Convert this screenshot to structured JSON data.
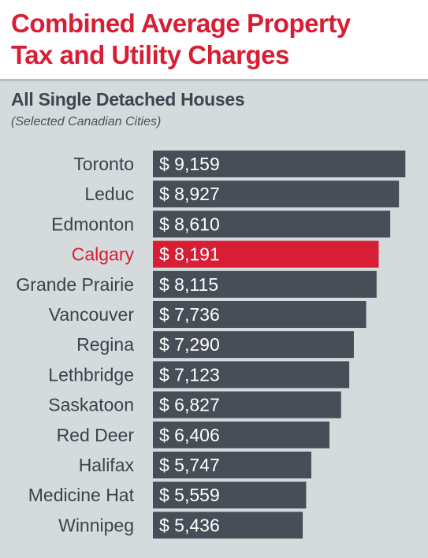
{
  "header": {
    "title_line1": "Combined Average Property",
    "title_line2": "Tax and Utility Charges"
  },
  "chart_data": {
    "type": "bar",
    "orientation": "horizontal",
    "title": "All Single Detached Houses",
    "subtitle": "(Selected Canadian Cities)",
    "value_prefix": "$ ",
    "categories": [
      "Toronto",
      "Leduc",
      "Edmonton",
      "Calgary",
      "Grande Prairie",
      "Vancouver",
      "Regina",
      "Lethbridge",
      "Saskatoon",
      "Red Deer",
      "Halifax",
      "Medicine Hat",
      "Winnipeg"
    ],
    "values": [
      9159,
      8927,
      8610,
      8191,
      8115,
      7736,
      7290,
      7123,
      6827,
      6406,
      5747,
      5559,
      5436
    ],
    "value_labels": [
      "9,159",
      "8,927",
      "8,610",
      "8,191",
      "8,115",
      "7,736",
      "7,290",
      "7,123",
      "6,827",
      "6,406",
      "5,747",
      "5,559",
      "5,436"
    ],
    "highlight": "Calgary",
    "colors": {
      "bar": "#474e57",
      "highlight": "#d71e34",
      "label": "#3b424b",
      "panel": "#d5dadd"
    }
  }
}
